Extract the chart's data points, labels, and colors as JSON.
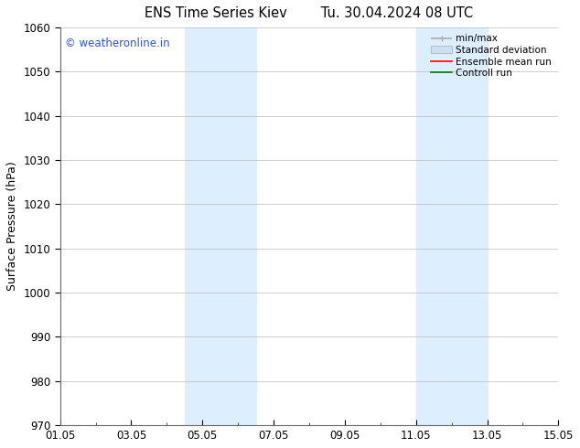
{
  "title_left": "ENS Time Series Kiev",
  "title_right": "Tu. 30.04.2024 08 UTC",
  "ylabel": "Surface Pressure (hPa)",
  "ylim": [
    970,
    1060
  ],
  "yticks": [
    970,
    980,
    990,
    1000,
    1010,
    1020,
    1030,
    1040,
    1050,
    1060
  ],
  "xtick_labels": [
    "01.05",
    "03.05",
    "05.05",
    "07.05",
    "09.05",
    "11.05",
    "13.05",
    "15.05"
  ],
  "xtick_positions": [
    0,
    2,
    4,
    6,
    8,
    10,
    12,
    14
  ],
  "xlim": [
    0,
    14
  ],
  "shaded_bands": [
    {
      "xstart": 3.5,
      "xend": 5.5
    },
    {
      "xstart": 10.0,
      "xend": 12.0
    }
  ],
  "shaded_color": "#ddeeff",
  "watermark": "© weatheronline.in",
  "watermark_color": "#3355cc",
  "background_color": "#ffffff",
  "grid_color": "#bbbbbb",
  "legend_items": [
    {
      "label": "min/max",
      "color": "#aaaaaa",
      "lw": 1.2,
      "style": "line_with_caps"
    },
    {
      "label": "Standard deviation",
      "color": "#cce0f0",
      "lw": 8,
      "style": "band"
    },
    {
      "label": "Ensemble mean run",
      "color": "#ff0000",
      "lw": 1.2,
      "style": "line"
    },
    {
      "label": "Controll run",
      "color": "#007700",
      "lw": 1.2,
      "style": "line"
    }
  ]
}
